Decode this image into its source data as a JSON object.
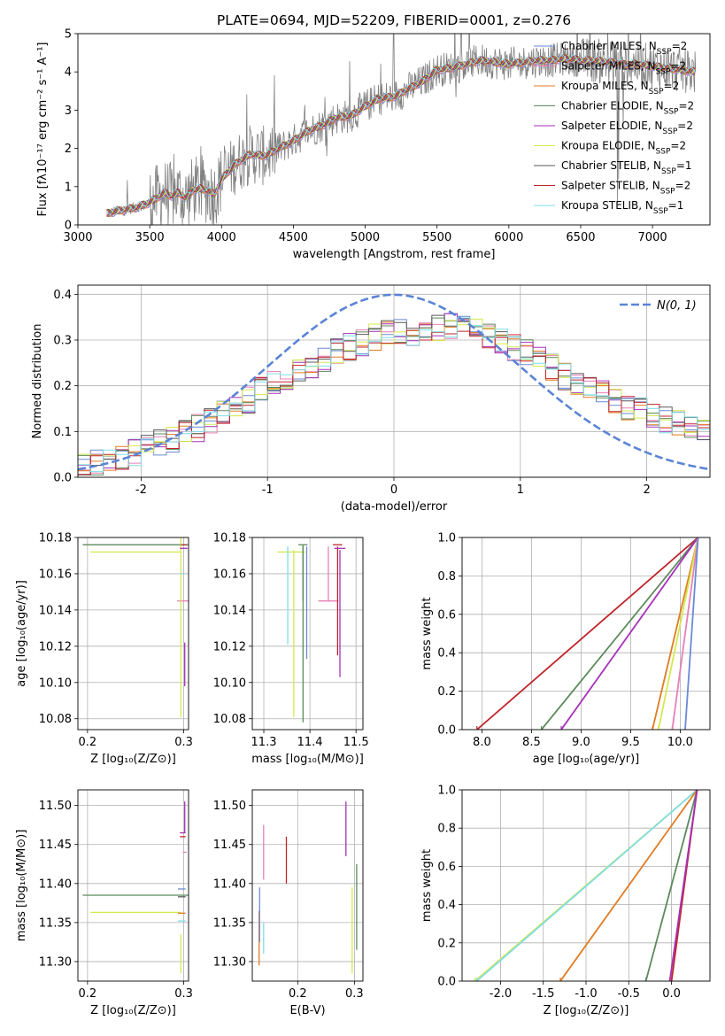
{
  "colors": {
    "Chabrier MILES": "#6a8ad6",
    "Salpeter MILES": "#e67fb8",
    "Kroupa MILES": "#e07b22",
    "Chabrier ELODIE": "#5c8a5c",
    "Salpeter ELODIE": "#a632b8",
    "Kroupa ELODIE": "#d4e84f",
    "Chabrier STELIB": "#5a5a5a",
    "Salpeter STELIB": "#c0242a",
    "Kroupa STELIB": "#7fdde6",
    "data": "#808080",
    "gaussian": "#5a84d6"
  },
  "chart_data": [
    {
      "type": "line",
      "title": "PLATE=0694, MJD=52209, FIBERID=0001, z=0.276",
      "xlabel": "wavelength [Angstrom, rest frame]",
      "ylabel": "Flux [fλ10⁻¹⁷ erg cm⁻² s⁻¹ A⁻¹]",
      "xlim": [
        3000,
        7400
      ],
      "ylim": [
        0,
        5
      ],
      "xticks": [
        3000,
        3500,
        4000,
        4500,
        5000,
        5500,
        6000,
        6500,
        7000
      ],
      "yticks": [
        0,
        1,
        2,
        3,
        4,
        5
      ],
      "grid": false,
      "legend_position": "top-right",
      "legend": [
        {
          "name": "Chabrier MILES",
          "label": "Chabrier MILES, N",
          "sub": "SSP",
          "suffix": "=2"
        },
        {
          "name": "Salpeter MILES",
          "label": "Salpeter MILES, N",
          "sub": "SSP",
          "suffix": "=2"
        },
        {
          "name": "Kroupa MILES",
          "label": "Kroupa MILES, N",
          "sub": "SSP",
          "suffix": "=2"
        },
        {
          "name": "Chabrier ELODIE",
          "label": "Chabrier ELODIE, N",
          "sub": "SSP",
          "suffix": "=2"
        },
        {
          "name": "Salpeter ELODIE",
          "label": "Salpeter ELODIE, N",
          "sub": "SSP",
          "suffix": "=2"
        },
        {
          "name": "Kroupa ELODIE",
          "label": "Kroupa ELODIE, N",
          "sub": "SSP",
          "suffix": "=2"
        },
        {
          "name": "Chabrier STELIB",
          "label": "Chabrier STELIB, N",
          "sub": "SSP",
          "suffix": "=1"
        },
        {
          "name": "Salpeter STELIB",
          "label": "Salpeter STELIB, N",
          "sub": "SSP",
          "suffix": "=2"
        },
        {
          "name": "Kroupa STELIB",
          "label": "Kroupa STELIB, N",
          "sub": "SSP",
          "suffix": "=1"
        }
      ],
      "model_continuum": [
        [
          3200,
          0.3
        ],
        [
          3260,
          0.35
        ],
        [
          3330,
          0.4
        ],
        [
          3400,
          0.45
        ],
        [
          3480,
          0.55
        ],
        [
          3550,
          0.7
        ],
        [
          3600,
          0.85
        ],
        [
          3650,
          0.75
        ],
        [
          3700,
          0.85
        ],
        [
          3750,
          0.7
        ],
        [
          3800,
          0.9
        ],
        [
          3850,
          0.95
        ],
        [
          3900,
          0.9
        ],
        [
          3950,
          0.8
        ],
        [
          4000,
          1.2
        ],
        [
          4100,
          1.6
        ],
        [
          4200,
          1.85
        ],
        [
          4300,
          1.8
        ],
        [
          4400,
          2.0
        ],
        [
          4500,
          2.2
        ],
        [
          4600,
          2.45
        ],
        [
          4700,
          2.6
        ],
        [
          4800,
          2.8
        ],
        [
          4900,
          2.85
        ],
        [
          5000,
          3.1
        ],
        [
          5100,
          3.3
        ],
        [
          5200,
          3.35
        ],
        [
          5300,
          3.55
        ],
        [
          5400,
          3.75
        ],
        [
          5500,
          4.05
        ],
        [
          5600,
          4.1
        ],
        [
          5700,
          4.2
        ],
        [
          5800,
          4.3
        ],
        [
          5900,
          4.25
        ],
        [
          6000,
          4.2
        ],
        [
          6100,
          4.25
        ],
        [
          6200,
          4.3
        ],
        [
          6300,
          4.3
        ],
        [
          6400,
          4.35
        ],
        [
          6500,
          4.3
        ],
        [
          6600,
          4.3
        ],
        [
          6700,
          4.25
        ],
        [
          6800,
          4.2
        ],
        [
          6900,
          4.2
        ],
        [
          7000,
          4.15
        ],
        [
          7100,
          4.1
        ],
        [
          7200,
          4.05
        ],
        [
          7300,
          4.0
        ]
      ],
      "observed_range": [
        3200,
        7300
      ]
    },
    {
      "type": "step",
      "xlabel": "(data-model)/error",
      "ylabel": "Normed distribution",
      "xlim": [
        -2.5,
        2.5
      ],
      "ylim": [
        0,
        0.42
      ],
      "xticks": [
        -2,
        -1,
        0,
        1,
        2
      ],
      "yticks": [
        0.0,
        0.1,
        0.2,
        0.3,
        0.4
      ],
      "grid": true,
      "legend_position": "top-right",
      "gaussian_label": "N(0, 1)",
      "bin_width": 0.1,
      "histogram_envelope": [
        [
          -2.5,
          0.03
        ],
        [
          -2.2,
          0.035
        ],
        [
          -2.0,
          0.06
        ],
        [
          -1.8,
          0.08
        ],
        [
          -1.6,
          0.1
        ],
        [
          -1.4,
          0.13
        ],
        [
          -1.2,
          0.16
        ],
        [
          -1.0,
          0.2
        ],
        [
          -0.8,
          0.22
        ],
        [
          -0.6,
          0.25
        ],
        [
          -0.4,
          0.28
        ],
        [
          -0.2,
          0.3
        ],
        [
          0.0,
          0.32
        ],
        [
          0.2,
          0.31
        ],
        [
          0.4,
          0.33
        ],
        [
          0.6,
          0.33
        ],
        [
          0.8,
          0.3
        ],
        [
          1.0,
          0.28
        ],
        [
          1.2,
          0.25
        ],
        [
          1.4,
          0.21
        ],
        [
          1.6,
          0.19
        ],
        [
          1.8,
          0.16
        ],
        [
          2.0,
          0.14
        ],
        [
          2.2,
          0.12
        ],
        [
          2.4,
          0.11
        ],
        [
          2.5,
          0.1
        ]
      ]
    },
    {
      "type": "errorbar",
      "xlabel": "Z [log₁₀(Z/Z⊙)]",
      "ylabel": "age  [log₁₀(age/yr)]",
      "xlim": [
        0.19,
        0.305
      ],
      "ylim": [
        10.074,
        10.18
      ],
      "xticks": [
        0.2,
        0.3
      ],
      "yticks": [
        10.08,
        10.1,
        10.12,
        10.14,
        10.16,
        10.18
      ],
      "grid": true,
      "points": [
        {
          "series": "Chabrier MILES",
          "x": 0.3,
          "y": 10.176,
          "xerr": 0.0,
          "yerr": 0.0
        },
        {
          "series": "Salpeter MILES",
          "x": 0.299,
          "y": 10.145,
          "xerr": 0.006,
          "yerr": 0.0
        },
        {
          "series": "Chabrier ELODIE",
          "x": 0.25,
          "y": 10.176,
          "xerr": 0.055,
          "yerr": 0.0
        },
        {
          "series": "Kroupa ELODIE",
          "x": 0.25,
          "y": 10.172,
          "xerr": 0.047,
          "yerr": 0.0
        },
        {
          "series": "Kroupa ELODIE",
          "x": 0.297,
          "y": 10.131,
          "xerr": 0.0,
          "yerr": 0.05
        },
        {
          "series": "Salpeter ELODIE",
          "x": 0.3,
          "y": 10.174,
          "xerr": 0.004,
          "yerr": 0.0
        },
        {
          "series": "Salpeter ELODIE",
          "x": 0.301,
          "y": 10.11,
          "xerr": 0.0,
          "yerr": 0.012
        },
        {
          "series": "Salpeter STELIB",
          "x": 0.3,
          "y": 10.176,
          "xerr": 0.003,
          "yerr": 0.0
        },
        {
          "series": "Kroupa STELIB",
          "x": 0.298,
          "y": 10.16,
          "xerr": 0.002,
          "yerr": 0.0
        }
      ]
    },
    {
      "type": "errorbar",
      "xlabel": "mass [log₁₀(M/M⊙)]",
      "xlim": [
        11.275,
        11.515
      ],
      "ylim": [
        10.074,
        10.18
      ],
      "xticks": [
        11.3,
        11.4,
        11.5
      ],
      "yticks": [
        10.08,
        10.1,
        10.12,
        10.14,
        10.16,
        10.18
      ],
      "grid": true,
      "points": [
        {
          "series": "Kroupa ELODIE",
          "x": 11.36,
          "y": 10.172,
          "xerr": 0.03,
          "yerr": 0.0
        },
        {
          "series": "Kroupa ELODIE",
          "x": 11.365,
          "y": 10.127,
          "xerr": 0.0,
          "yerr": 0.046
        },
        {
          "series": "Kroupa STELIB",
          "x": 11.352,
          "y": 10.148,
          "xerr": 0.0,
          "yerr": 0.027
        },
        {
          "series": "Chabrier STELIB",
          "x": 11.385,
          "y": 10.16,
          "xerr": 0.0,
          "yerr": 0.015
        },
        {
          "series": "Chabrier ELODIE",
          "x": 11.385,
          "y": 10.127,
          "xerr": 0.0,
          "yerr": 0.049
        },
        {
          "series": "Chabrier MILES",
          "x": 11.393,
          "y": 10.144,
          "xerr": 0.0,
          "yerr": 0.031
        },
        {
          "series": "Chabrier ELODIE",
          "x": 11.385,
          "y": 10.176,
          "xerr": 0.01,
          "yerr": 0.0
        },
        {
          "series": "Salpeter MILES",
          "x": 11.44,
          "y": 10.145,
          "xerr": 0.022,
          "yerr": 0.0
        },
        {
          "series": "Salpeter MILES",
          "x": 11.44,
          "y": 10.16,
          "xerr": 0.0,
          "yerr": 0.015
        },
        {
          "series": "Salpeter STELIB",
          "x": 11.46,
          "y": 10.176,
          "xerr": 0.01,
          "yerr": 0.0
        },
        {
          "series": "Salpeter STELIB",
          "x": 11.46,
          "y": 10.145,
          "xerr": 0.0,
          "yerr": 0.03
        },
        {
          "series": "Salpeter ELODIE",
          "x": 11.465,
          "y": 10.174,
          "xerr": 0.012,
          "yerr": 0.0
        },
        {
          "series": "Salpeter ELODIE",
          "x": 11.465,
          "y": 10.138,
          "xerr": 0.0,
          "yerr": 0.035
        }
      ]
    },
    {
      "type": "line",
      "xlabel": "age  [log₁₀(age/yr)]",
      "ylabel": "mass weight",
      "xlim": [
        7.8,
        10.3
      ],
      "ylim": [
        0,
        1
      ],
      "xticks": [
        8.0,
        8.5,
        9.0,
        9.5,
        10.0
      ],
      "yticks": [
        0.0,
        0.2,
        0.4,
        0.6,
        0.8,
        1.0
      ],
      "grid": true,
      "series": [
        {
          "name": "Salpeter STELIB",
          "x": [
            7.95,
            10.18
          ],
          "y": [
            0.0,
            1.0
          ]
        },
        {
          "name": "Chabrier ELODIE",
          "x": [
            8.6,
            10.18
          ],
          "y": [
            0.0,
            1.0
          ]
        },
        {
          "name": "Salpeter ELODIE",
          "x": [
            8.8,
            10.18
          ],
          "y": [
            0.0,
            1.0
          ]
        },
        {
          "name": "Kroupa MILES",
          "x": [
            9.72,
            10.18
          ],
          "y": [
            0.0,
            1.0
          ]
        },
        {
          "name": "Kroupa ELODIE",
          "x": [
            9.78,
            10.18
          ],
          "y": [
            0.0,
            1.0
          ]
        },
        {
          "name": "Salpeter MILES",
          "x": [
            9.92,
            10.18
          ],
          "y": [
            0.0,
            1.0
          ]
        },
        {
          "name": "Chabrier MILES",
          "x": [
            10.05,
            10.18
          ],
          "y": [
            0.0,
            1.0
          ]
        }
      ]
    },
    {
      "type": "errorbar",
      "xlabel": "Z [log₁₀(Z/Z⊙)]",
      "ylabel": "mass [log₁₀(M/M⊙)]",
      "xlim": [
        0.19,
        0.305
      ],
      "ylim": [
        11.275,
        11.52
      ],
      "xticks": [
        0.2,
        0.3
      ],
      "yticks": [
        11.3,
        11.35,
        11.4,
        11.45,
        11.5
      ],
      "grid": true,
      "points": [
        {
          "series": "Chabrier ELODIE",
          "x": 0.25,
          "y": 11.385,
          "xerr": 0.055,
          "yerr": 0.0
        },
        {
          "series": "Chabrier STELIB",
          "x": 0.298,
          "y": 11.383,
          "xerr": 0.004,
          "yerr": 0.0
        },
        {
          "series": "Kroupa ELODIE",
          "x": 0.25,
          "y": 11.363,
          "xerr": 0.047,
          "yerr": 0.0
        },
        {
          "series": "Kroupa MILES",
          "x": 0.298,
          "y": 11.362,
          "xerr": 0.004,
          "yerr": 0.0
        },
        {
          "series": "Kroupa STELIB",
          "x": 0.298,
          "y": 11.352,
          "xerr": 0.004,
          "yerr": 0.0
        },
        {
          "series": "Chabrier MILES",
          "x": 0.298,
          "y": 11.393,
          "xerr": 0.004,
          "yerr": 0.0
        },
        {
          "series": "Salpeter ELODIE",
          "x": 0.301,
          "y": 11.485,
          "xerr": 0.0,
          "yerr": 0.02
        },
        {
          "series": "Salpeter ELODIE",
          "x": 0.299,
          "y": 11.465,
          "xerr": 0.003,
          "yerr": 0.0
        },
        {
          "series": "Salpeter STELIB",
          "x": 0.299,
          "y": 11.46,
          "xerr": 0.003,
          "yerr": 0.0
        },
        {
          "series": "Salpeter MILES",
          "x": 0.301,
          "y": 11.44,
          "xerr": 0.002,
          "yerr": 0.0
        },
        {
          "series": "Kroupa ELODIE",
          "x": 0.297,
          "y": 11.31,
          "xerr": 0.0,
          "yerr": 0.025
        }
      ]
    },
    {
      "type": "errorbar",
      "xlabel": "E(B-V)",
      "xlim": [
        0.12,
        0.315
      ],
      "ylim": [
        11.275,
        11.52
      ],
      "xticks": [
        0.2,
        0.3
      ],
      "yticks": [
        11.3,
        11.35,
        11.4,
        11.45,
        11.5
      ],
      "grid": true,
      "points": [
        {
          "series": "Kroupa MILES",
          "x": 0.132,
          "y": 11.33,
          "xerr": 0.0,
          "yerr": 0.035
        },
        {
          "series": "Chabrier MILES",
          "x": 0.133,
          "y": 11.36,
          "xerr": 0.0,
          "yerr": 0.035
        },
        {
          "series": "Kroupa STELIB",
          "x": 0.14,
          "y": 11.33,
          "xerr": 0.0,
          "yerr": 0.02
        },
        {
          "series": "Salpeter MILES",
          "x": 0.14,
          "y": 11.44,
          "xerr": 0.0,
          "yerr": 0.035
        },
        {
          "series": "Salpeter STELIB",
          "x": 0.18,
          "y": 11.43,
          "xerr": 0.0,
          "yerr": 0.03
        },
        {
          "series": "Salpeter ELODIE",
          "x": 0.285,
          "y": 11.47,
          "xerr": 0.0,
          "yerr": 0.035
        },
        {
          "series": "Kroupa ELODIE",
          "x": 0.296,
          "y": 11.34,
          "xerr": 0.0,
          "yerr": 0.055
        },
        {
          "series": "Chabrier ELODIE",
          "x": 0.304,
          "y": 11.37,
          "xerr": 0.0,
          "yerr": 0.055
        }
      ]
    },
    {
      "type": "line",
      "xlabel": "Z [log₁₀(Z/Z⊙)]",
      "ylabel": "mass weight",
      "xlim": [
        -2.45,
        0.45
      ],
      "ylim": [
        0,
        1
      ],
      "xticks": [
        -2.0,
        -1.5,
        -1.0,
        -0.5,
        0.0
      ],
      "yticks": [
        0.0,
        0.2,
        0.4,
        0.6,
        0.8,
        1.0
      ],
      "grid": true,
      "series": [
        {
          "name": "Kroupa ELODIE",
          "x": [
            -2.3,
            0.3
          ],
          "y": [
            0.0,
            1.0
          ]
        },
        {
          "name": "Kroupa STELIB",
          "x": [
            -2.28,
            0.3
          ],
          "y": [
            0.0,
            1.0
          ]
        },
        {
          "name": "Kroupa MILES",
          "x": [
            -1.3,
            0.3
          ],
          "y": [
            0.0,
            1.0
          ]
        },
        {
          "name": "Chabrier ELODIE",
          "x": [
            -0.3,
            0.3
          ],
          "y": [
            0.0,
            1.0
          ]
        },
        {
          "name": "Salpeter STELIB",
          "x": [
            0.0,
            0.3
          ],
          "y": [
            0.0,
            1.0
          ]
        },
        {
          "name": "Salpeter ELODIE",
          "x": [
            -0.02,
            0.3
          ],
          "y": [
            0.0,
            1.0
          ]
        }
      ]
    }
  ]
}
